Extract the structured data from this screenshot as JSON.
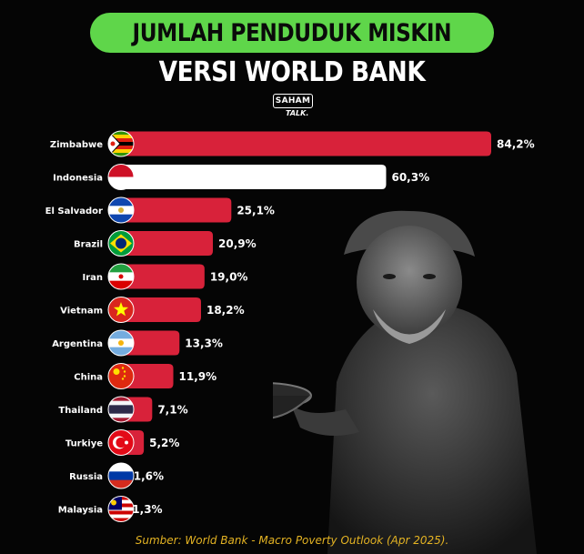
{
  "header": {
    "title_line1": "JUMLAH PENDUDUK MISKIN",
    "title_line2": "VERSI WORLD BANK",
    "logo_top": "SAHAM",
    "logo_bottom": "TALK."
  },
  "source": "Sumber: World Bank - Macro Poverty Outlook (Apr 2025).",
  "colors": {
    "accent_green": "#5fd64a",
    "bar_red": "#d8223a",
    "highlight_white": "#ffffff",
    "source_yellow": "#e4b323"
  },
  "chart_data": {
    "type": "bar",
    "orientation": "horizontal",
    "categories": [
      "Zimbabwe",
      "Indonesia",
      "El Salvador",
      "Brazil",
      "Iran",
      "Vietnam",
      "Argentina",
      "China",
      "Thailand",
      "Turkiye",
      "Russia",
      "Malaysia"
    ],
    "values": [
      84.2,
      60.3,
      25.1,
      20.9,
      19.0,
      18.2,
      13.3,
      11.9,
      7.1,
      5.2,
      1.6,
      1.3
    ],
    "value_labels": [
      "84,2%",
      "60,3%",
      "25,1%",
      "20,9%",
      "19,0%",
      "18,2%",
      "13,3%",
      "11,9%",
      "7,1%",
      "5,2%",
      "1,6%",
      "1,3%"
    ],
    "highlight": "Indonesia",
    "flags": [
      "zimbabwe-flag-icon",
      "indonesia-flag-icon",
      "el-salvador-flag-icon",
      "brazil-flag-icon",
      "iran-flag-icon",
      "vietnam-flag-icon",
      "argentina-flag-icon",
      "china-flag-icon",
      "thailand-flag-icon",
      "turkiye-flag-icon",
      "russia-flag-icon",
      "malaysia-flag-icon"
    ],
    "grid": false,
    "legend": "none"
  }
}
